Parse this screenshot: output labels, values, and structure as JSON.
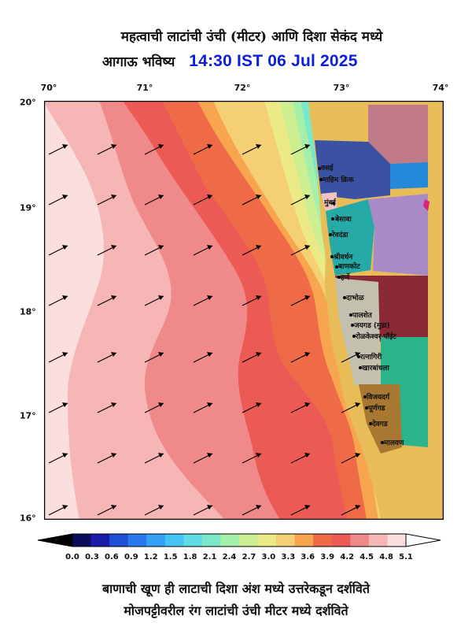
{
  "title": {
    "line1": "महत्वाची लाटांची उंची (मीटर) आणि दिशा सेकंद मध्ये",
    "line2_prefix": "आगाऊ भविष्य",
    "line2_time": "14:30 IST 06 Jul 2025"
  },
  "axes": {
    "lon_ticks": [
      "70°",
      "71°",
      "72°",
      "73°",
      "74°"
    ],
    "lat_ticks": [
      "20°",
      "19°",
      "18°",
      "17°",
      "16°"
    ]
  },
  "colorbar": {
    "labels": [
      "0.0",
      "0.3",
      "0.6",
      "0.9",
      "1.2",
      "1.5",
      "1.8",
      "2.1",
      "2.4",
      "2.7",
      "3.0",
      "3.3",
      "3.6",
      "3.9",
      "4.2",
      "4.5",
      "4.8",
      "5.1"
    ],
    "colors": [
      "#0b0b5c",
      "#1a1aa8",
      "#1f4fd6",
      "#2a78ee",
      "#35a0f5",
      "#45c3f3",
      "#5fdbe6",
      "#7be8c9",
      "#a5f0a8",
      "#cdee91",
      "#ecea86",
      "#f5cf73",
      "#f8a54f",
      "#ef6a47",
      "#ec5a55",
      "#f08a8a",
      "#f7b6b6",
      "#fbdede"
    ],
    "under_color": "#000000",
    "over_color": "#ffffff"
  },
  "places": [
    "वसई",
    "माहिम क्रिक",
    "मुंबई",
    "बेसावा",
    "रेवदंडा",
    "श्रीवर्धन",
    "बाणकोट",
    "हर्णे",
    "दाभोळ",
    "पालशेत",
    "जयगड (मुडा)",
    "रोळकेश्वर पॉईंट",
    "रत्नागिरी",
    "खारबांधला",
    "विजयदर्ग",
    "पूर्णगड",
    "देवगड",
    "मालवण"
  ],
  "wave_direction": "north-east",
  "footer": {
    "line1": "बाणाची खूण ही लाटाची दिशा अंश मध्ये उत्तरेकडून दर्शविते",
    "line2": "मोजपट्टीवरील रंग लाटांची उंची मीटर मध्ये दर्शविते"
  }
}
